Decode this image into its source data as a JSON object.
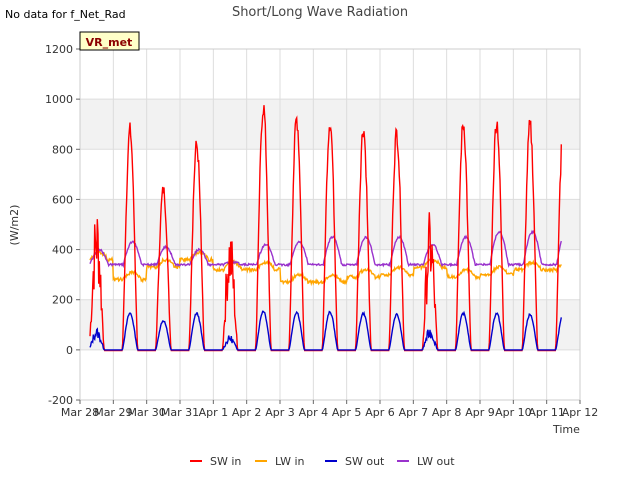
{
  "chart_data": {
    "type": "line",
    "title": "Short/Long Wave Radiation",
    "nodata_note": "No data for f_Net_Rad",
    "badge": "VR_met",
    "xlabel": "Time",
    "ylabel": "(W/m2)",
    "xlim": [
      0,
      15
    ],
    "ylim": [
      -200,
      1200
    ],
    "yticks": [
      -200,
      0,
      200,
      400,
      600,
      800,
      1000,
      1200
    ],
    "xticks": [
      {
        "v": 0,
        "label": "Mar 28"
      },
      {
        "v": 1,
        "label": "Mar 29"
      },
      {
        "v": 2,
        "label": "Mar 30"
      },
      {
        "v": 3,
        "label": "Mar 31"
      },
      {
        "v": 4,
        "label": "Apr 1"
      },
      {
        "v": 5,
        "label": "Apr 2"
      },
      {
        "v": 6,
        "label": "Apr 3"
      },
      {
        "v": 7,
        "label": "Apr 4"
      },
      {
        "v": 8,
        "label": "Apr 5"
      },
      {
        "v": 9,
        "label": "Apr 6"
      },
      {
        "v": 10,
        "label": "Apr 7"
      },
      {
        "v": 11,
        "label": "Apr 8"
      },
      {
        "v": 12,
        "label": "Apr 9"
      },
      {
        "v": 13,
        "label": "Apr 10"
      },
      {
        "v": 14,
        "label": "Apr 11"
      },
      {
        "v": 15,
        "label": "Apr 12"
      }
    ],
    "grid": true,
    "legend_position": "bottom",
    "data_range_days": [
      0.3,
      14.45
    ],
    "series": [
      {
        "name": "SW in",
        "color": "#ff0000",
        "daily_peaks": [
          600,
          910,
          665,
          850,
          510,
          1010,
          960,
          950,
          920,
          900,
          560,
          940,
          950,
          930
        ]
      },
      {
        "name": "LW in",
        "color": "#ffa500",
        "daily_levels": [
          360,
          280,
          330,
          360,
          320,
          320,
          270,
          270,
          290,
          300,
          330,
          290,
          300,
          320
        ]
      },
      {
        "name": "SW out",
        "color": "#0000cc",
        "daily_peaks": [
          90,
          150,
          120,
          150,
          60,
          160,
          155,
          155,
          150,
          145,
          90,
          150,
          150,
          145
        ]
      },
      {
        "name": "LW out",
        "color": "#9932cc",
        "daily_levels": [
          400,
          430,
          410,
          400,
          350,
          420,
          430,
          450,
          450,
          450,
          420,
          450,
          470,
          470
        ]
      }
    ]
  }
}
